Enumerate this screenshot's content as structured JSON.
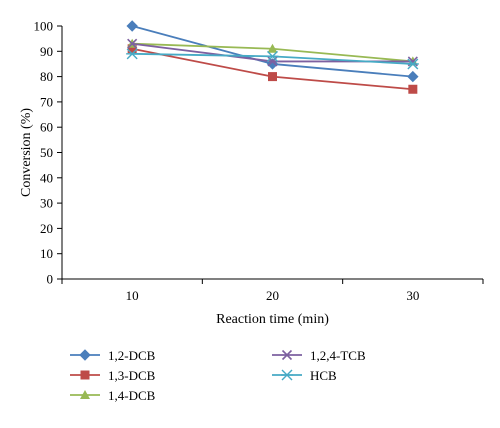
{
  "chart_data": {
    "type": "line",
    "title": "",
    "xlabel": "Reaction time (min)",
    "ylabel": "Conversion (%)",
    "x": [
      10,
      20,
      30
    ],
    "x_tick_labels": [
      "10",
      "20",
      "30"
    ],
    "ylim": [
      0,
      100
    ],
    "y_ticks": [
      0,
      10,
      20,
      30,
      40,
      50,
      60,
      70,
      80,
      90,
      100
    ],
    "y_tick_labels": [
      "0",
      "10",
      "20",
      "30",
      "40",
      "50",
      "60",
      "70",
      "80",
      "90",
      "100"
    ],
    "grid": false,
    "legend_position": "bottom",
    "series": [
      {
        "name": "1,2-DCB",
        "values": [
          100,
          85,
          80
        ],
        "color": "#4a7ebb",
        "marker": "diamond"
      },
      {
        "name": "1,3-DCB",
        "values": [
          91,
          80,
          75
        ],
        "color": "#be4b48",
        "marker": "square"
      },
      {
        "name": "1,4-DCB",
        "values": [
          93,
          91,
          86
        ],
        "color": "#98b954",
        "marker": "triangle"
      },
      {
        "name": "1,2,4-TCB",
        "values": [
          93,
          86,
          86
        ],
        "color": "#7d60a0",
        "marker": "x"
      },
      {
        "name": "HCB",
        "values": [
          89,
          88,
          85
        ],
        "color": "#46aac5",
        "marker": "star"
      }
    ]
  }
}
